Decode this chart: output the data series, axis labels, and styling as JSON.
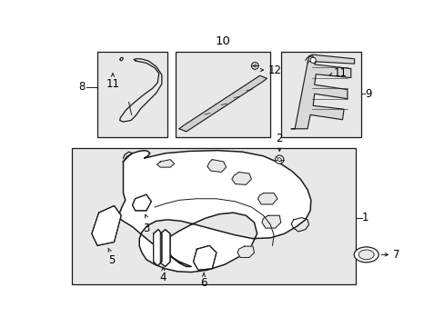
{
  "bg": "#ffffff",
  "box_fill": "#e8e8e8",
  "lc": "#1a1a1a",
  "lw": 0.9,
  "fig_w": 4.89,
  "fig_h": 3.6,
  "dpi": 100
}
